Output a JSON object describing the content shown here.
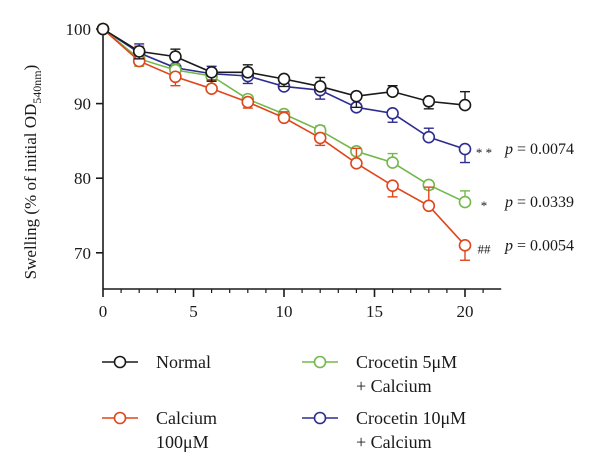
{
  "chart_data": {
    "type": "line",
    "ylabel_main": "Swelling (% of initial OD",
    "ylabel_sub": "540nm",
    "ylabel_close": ")",
    "xlabel": "",
    "xlim": [
      0,
      22
    ],
    "ylim": [
      65,
      100
    ],
    "x_ticks": [
      0,
      5,
      10,
      15,
      20
    ],
    "y_ticks": [
      70,
      80,
      90,
      100
    ],
    "grid": false,
    "legend_position": "bottom",
    "series": [
      {
        "name": "Normal",
        "color": "#1a1a1a",
        "x": [
          0,
          2,
          4,
          6,
          8,
          10,
          12,
          14,
          16,
          18,
          20
        ],
        "y": [
          100,
          97,
          96.3,
          94.2,
          94.2,
          93.3,
          92.3,
          91.0,
          91.6,
          90.3,
          89.8
        ],
        "err": [
          0,
          1.0,
          1.0,
          1.2,
          1.0,
          1.0,
          1.2,
          1.5,
          0.8,
          1.0,
          1.8
        ],
        "annotation_marker": "",
        "annotation_p": ""
      },
      {
        "name": "Calcium 100μM",
        "name_line1": "Calcium",
        "name_line2": "100μM",
        "color": "#e0461c",
        "x": [
          0,
          2,
          4,
          6,
          8,
          10,
          12,
          14,
          16,
          18,
          20
        ],
        "y": [
          100,
          95.7,
          93.6,
          92.0,
          90.2,
          88.1,
          85.4,
          82.0,
          79.0,
          76.3,
          71.0
        ],
        "err": [
          0,
          2.0,
          1.2,
          1.2,
          0.8,
          0.8,
          1.0,
          2.0,
          1.5,
          2.5,
          2.0
        ],
        "annotation_marker": "##",
        "annotation_p": "0.0054"
      },
      {
        "name": "Crocetin 5μM + Calcium",
        "name_line1": "Crocetin 5μM",
        "name_line2": "+ Calcium",
        "color": "#72b84a",
        "x": [
          0,
          2,
          4,
          6,
          8,
          10,
          12,
          14,
          16,
          18,
          20
        ],
        "y": [
          100,
          96.0,
          94.5,
          93.7,
          90.6,
          88.6,
          86.4,
          83.6,
          82.1,
          79.1,
          76.8
        ],
        "err": [
          0,
          1.0,
          0.8,
          0.6,
          0.5,
          0.6,
          0.6,
          0.5,
          1.2,
          0.6,
          1.5
        ],
        "annotation_marker": "*",
        "annotation_p": "0.0339"
      },
      {
        "name": "Crocetin 10μM + Calcium",
        "name_line1": "Crocetin 10μM",
        "name_line2": "+ Calcium",
        "color": "#2e2d8f",
        "x": [
          0,
          2,
          4,
          6,
          8,
          10,
          12,
          14,
          16,
          18,
          20
        ],
        "y": [
          100,
          96.8,
          94.8,
          94.0,
          93.7,
          92.3,
          91.8,
          89.5,
          88.7,
          85.5,
          83.9
        ],
        "err": [
          0,
          1.2,
          1.0,
          1.0,
          1.0,
          1.0,
          1.2,
          0.5,
          1.2,
          1.2,
          1.8
        ],
        "annotation_marker": "**",
        "annotation_p": "0.0074"
      }
    ],
    "p_prefix": "p",
    "p_equals": "="
  }
}
